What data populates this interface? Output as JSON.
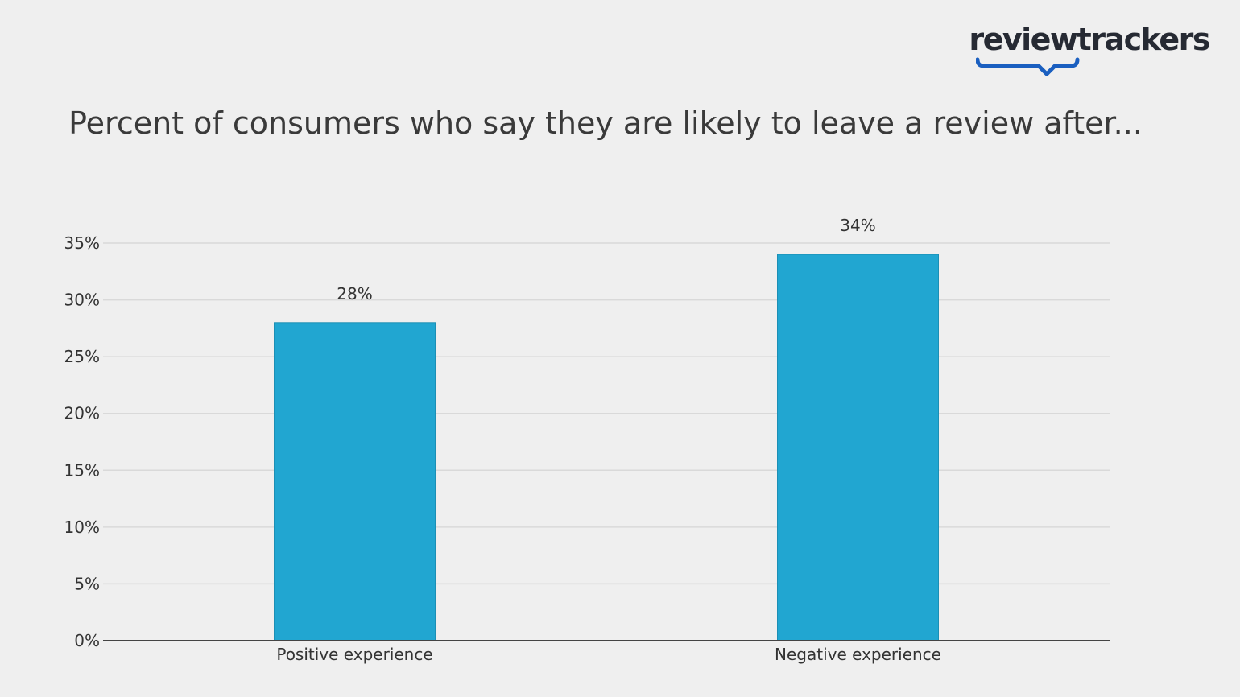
{
  "brand": {
    "logo_text": "reviewtrackers",
    "logo_color": "#262a33",
    "accent_color": "#1a5fc0"
  },
  "chart_data": {
    "type": "bar",
    "title": "Percent of consumers who say they are likely to leave a review after...",
    "categories": [
      "Positive experience",
      "Negative experience"
    ],
    "values": [
      28,
      34
    ],
    "value_labels": [
      "28%",
      "34%"
    ],
    "ylim": [
      0,
      35
    ],
    "yticks": [
      0,
      5,
      10,
      15,
      20,
      25,
      30,
      35
    ],
    "ytick_labels": [
      "0%",
      "5%",
      "10%",
      "15%",
      "20%",
      "25%",
      "30%",
      "35%"
    ],
    "xlabel": "",
    "ylabel": "",
    "grid": true,
    "legend": false,
    "bar_color": "#21a6d1",
    "grid_color": "#d9d9d9",
    "axis_color": "#444444"
  }
}
